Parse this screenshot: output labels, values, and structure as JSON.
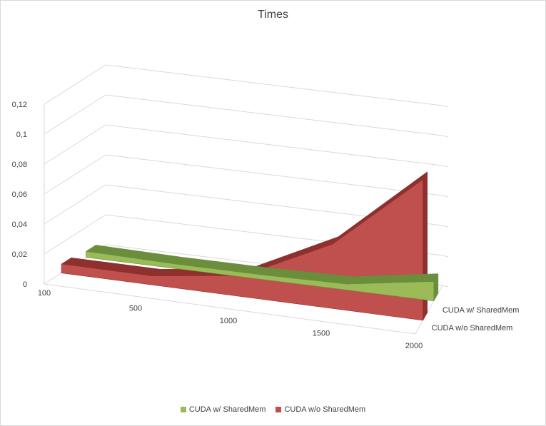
{
  "chart_data": {
    "type": "area",
    "title": "Times",
    "categories": [
      "100",
      "500",
      "1000",
      "1500",
      "2000"
    ],
    "y_ticks": [
      "0",
      "0,02",
      "0,04",
      "0,06",
      "0,08",
      "0,1",
      "0,12"
    ],
    "ylim": [
      0,
      0.12
    ],
    "grid": true,
    "legend_position": "bottom",
    "series": [
      {
        "name": "CUDA w/ SharedMem",
        "values": [
          0.004,
          0.003,
          0.003,
          0.004,
          0.013
        ],
        "color": "#9bbb59",
        "color_dark": "#6b8e3c"
      },
      {
        "name": "CUDA w/o SharedMem",
        "values": [
          0.006,
          0.006,
          0.014,
          0.043,
          0.094
        ],
        "color": "#c0504d",
        "color_dark": "#8e302e"
      }
    ]
  }
}
